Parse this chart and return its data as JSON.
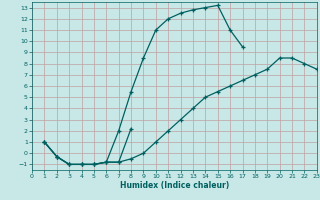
{
  "xlabel": "Humidex (Indice chaleur)",
  "background_color": "#c8e8e8",
  "grid_color": "#c0a0a0",
  "line_color": "#006060",
  "xlim": [
    0,
    23
  ],
  "ylim": [
    -1.5,
    13.5
  ],
  "xticks": [
    0,
    1,
    2,
    3,
    4,
    5,
    6,
    7,
    8,
    9,
    10,
    11,
    12,
    13,
    14,
    15,
    16,
    17,
    18,
    19,
    20,
    21,
    22,
    23
  ],
  "yticks": [
    -1,
    0,
    1,
    2,
    3,
    4,
    5,
    6,
    7,
    8,
    9,
    10,
    11,
    12,
    13
  ],
  "curves": [
    {
      "x": [
        1,
        2,
        3,
        4,
        5,
        6,
        7,
        8,
        9,
        10,
        11,
        12,
        13,
        14,
        15,
        16,
        17
      ],
      "y": [
        1,
        -0.3,
        -1,
        -1,
        -1,
        -0.8,
        2.0,
        5.5,
        8.5,
        11.0,
        12.0,
        12.5,
        12.8,
        13.0,
        13.2,
        11.0,
        9.5
      ]
    },
    {
      "x": [
        1,
        2,
        3,
        4,
        5,
        6,
        7,
        8
      ],
      "y": [
        1,
        -0.3,
        -1,
        -1,
        -1,
        -0.8,
        -0.8,
        2.2
      ]
    },
    {
      "x": [
        1,
        2,
        3,
        4,
        5,
        6,
        7,
        8,
        9,
        10,
        11,
        12,
        13,
        14,
        15,
        16,
        17,
        18,
        19,
        20,
        21,
        22,
        23
      ],
      "y": [
        1,
        -0.3,
        -1,
        -1,
        -1,
        -0.8,
        -0.8,
        -0.5,
        0,
        1,
        2,
        3,
        4,
        5,
        5.5,
        6,
        6.5,
        7,
        7.5,
        8.5,
        8.5,
        8.0,
        7.5
      ]
    }
  ]
}
